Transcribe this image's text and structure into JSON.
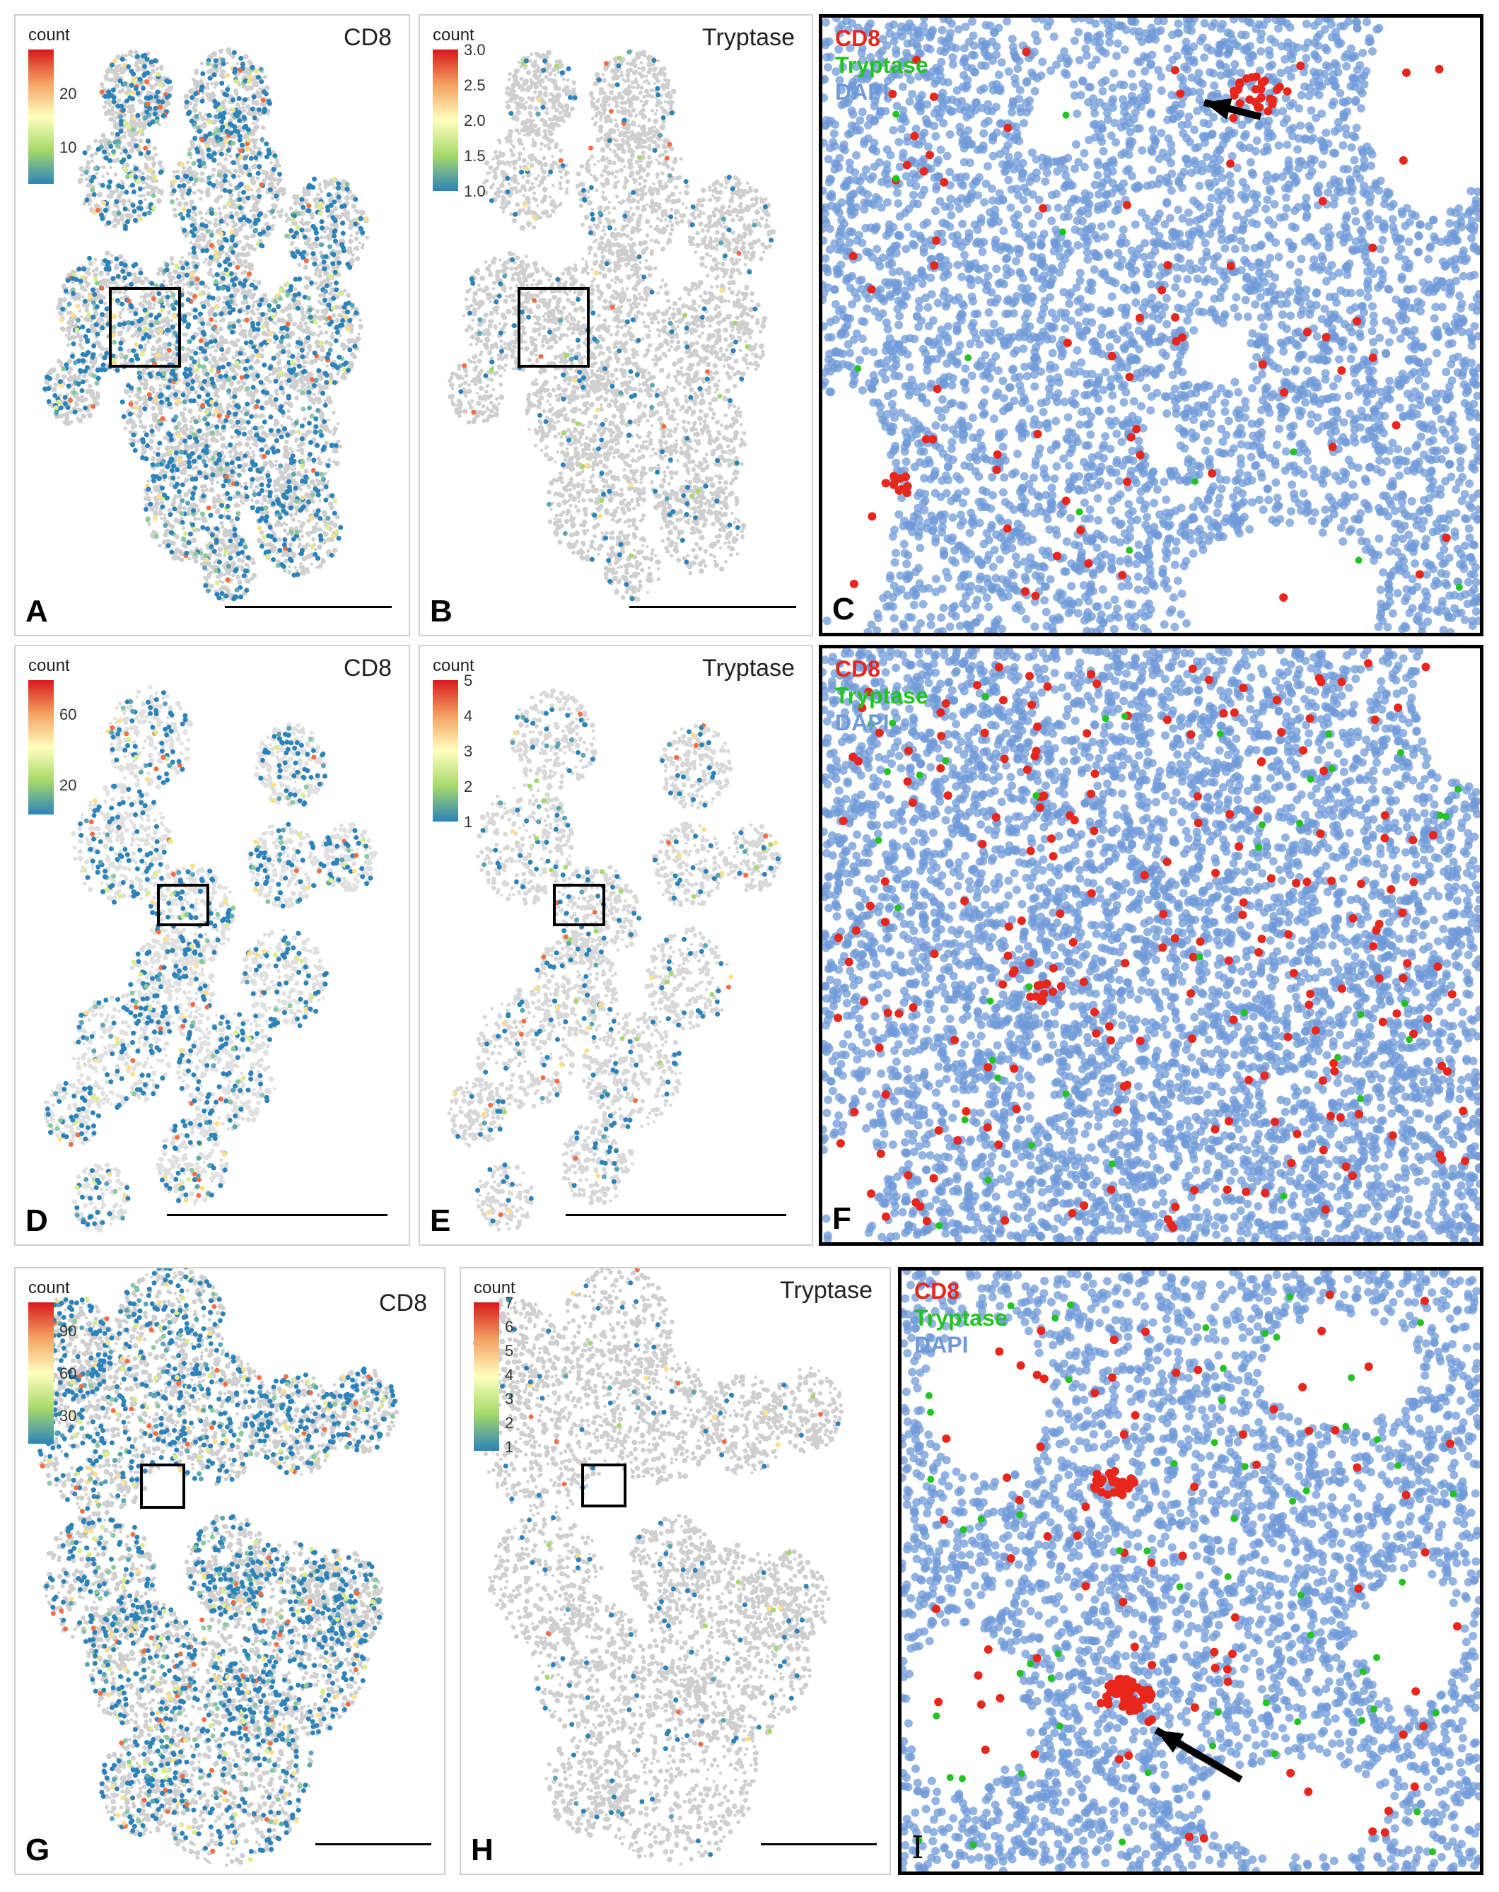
{
  "legend_title": "count",
  "panels": {
    "A": {
      "label": "A",
      "title": "CD8",
      "ticks": [
        "20",
        "10"
      ]
    },
    "B": {
      "label": "B",
      "title": "Tryptase",
      "ticks": [
        "3.0",
        "2.5",
        "2.0",
        "1.5",
        "1.0"
      ]
    },
    "C": {
      "label": "C",
      "channels": [
        "CD8",
        "Tryptase",
        "DAPI"
      ]
    },
    "D": {
      "label": "D",
      "title": "CD8",
      "ticks": [
        "60",
        "20"
      ]
    },
    "E": {
      "label": "E",
      "title": "Tryptase",
      "ticks": [
        "5",
        "4",
        "3",
        "2",
        "1"
      ]
    },
    "F": {
      "label": "F",
      "channels": [
        "CD8",
        "Tryptase",
        "DAPI"
      ]
    },
    "G": {
      "label": "G",
      "title": "CD8",
      "ticks": [
        "90",
        "60",
        "30"
      ]
    },
    "H": {
      "label": "H",
      "title": "Tryptase",
      "ticks": [
        "7",
        "6",
        "5",
        "4",
        "3",
        "2",
        "1"
      ]
    },
    "I": {
      "label": "I",
      "channels": [
        "CD8",
        "Tryptase",
        "DAPI"
      ]
    }
  },
  "colors": {
    "cd8": "#e8261c",
    "tryptase": "#22c422",
    "dapi": "#6f9ad8",
    "tissue": "#cfcfcf",
    "hex_low": "#2b83ba"
  },
  "icons": [
    "arrow-icon"
  ]
}
